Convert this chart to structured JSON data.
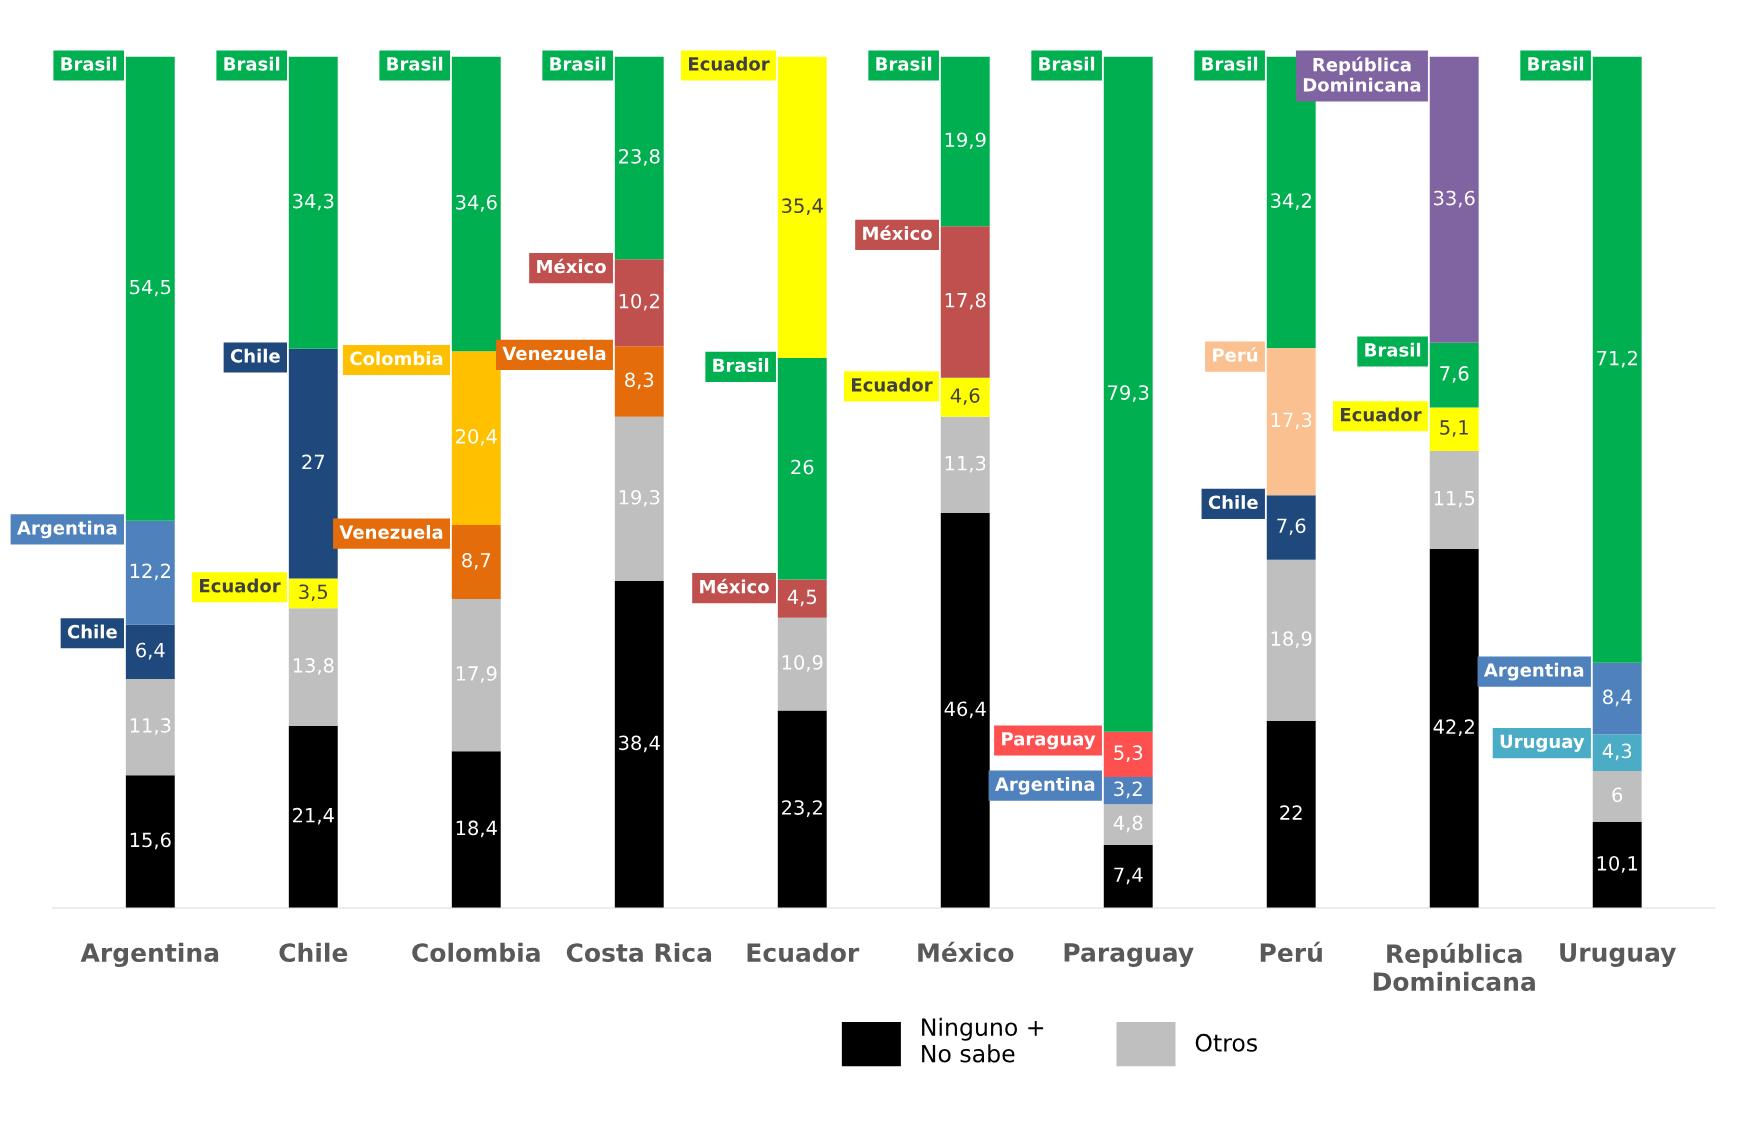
{
  "chart_data": {
    "type": "bar",
    "stacked": true,
    "categories": [
      "Argentina",
      "Chile",
      "Colombia",
      "Costa Rica",
      "Ecuador",
      "México",
      "Paraguay",
      "Perú",
      "República\nDominicana",
      "Uruguay"
    ],
    "series": [
      {
        "name": "Ninguno +\nNo sabe",
        "color": "#000000",
        "values": [
          15.6,
          21.4,
          18.4,
          38.4,
          23.2,
          46.4,
          7.4,
          22,
          42.2,
          10.1
        ],
        "value_labels": [
          "15,6",
          "21,4",
          "18,4",
          "38,4",
          "23,2",
          "46,4",
          "7,4",
          "22",
          "42,2",
          "10,1"
        ]
      },
      {
        "name": "Otros",
        "color": "#bfbfbf",
        "values": [
          11.3,
          13.8,
          17.9,
          19.3,
          10.9,
          11.3,
          4.8,
          18.9,
          11.5,
          6
        ],
        "value_labels": [
          "11,3",
          "13,8",
          "17,9",
          "19,3",
          "10,9",
          "11,3",
          "4,8",
          "18,9",
          "11,5",
          "6"
        ]
      },
      {
        "colors": [
          "#1f497d",
          "#ffff00",
          "#e46c0a",
          "#e46c0a",
          "#c0504d",
          "#ffff00",
          "#4f81bd",
          "#1f497d",
          "#ffff00",
          "#4bacc6"
        ],
        "values": [
          6.4,
          3.5,
          8.7,
          8.3,
          4.5,
          4.6,
          3.2,
          7.6,
          5.1,
          4.3
        ],
        "value_labels": [
          "6,4",
          "3,5",
          "8,7",
          "8,3",
          "4,5",
          "4,6",
          "3,2",
          "7,6",
          "5,1",
          "4,3"
        ]
      },
      {
        "colors": [
          "#4f81bd",
          "#1f497d",
          "#ffc000",
          "#c0504d",
          "#00b050",
          "#c0504d",
          "#ff5050",
          "#fac090",
          "#00b050",
          "#4f81bd"
        ],
        "values": [
          12.2,
          27,
          20.4,
          10.2,
          26,
          17.8,
          5.3,
          17.3,
          7.6,
          8.4
        ],
        "value_labels": [
          "12,2",
          "27",
          "20,4",
          "10,2",
          "26",
          "17,8",
          "5,3",
          "17,3",
          "7,6",
          "8,4"
        ]
      },
      {
        "colors": [
          "#00b050",
          "#00b050",
          "#00b050",
          "#00b050",
          "#ffff00",
          "#00b050",
          "#00b050",
          "#00b050",
          "#8064a2",
          "#00b050"
        ],
        "values": [
          54.5,
          34.3,
          34.6,
          23.8,
          35.4,
          19.9,
          79.3,
          34.2,
          33.6,
          71.2
        ],
        "value_labels": [
          "54,5",
          "34,3",
          "34,6",
          "23,8",
          "35,4",
          "19,9",
          "79,3",
          "34,2",
          "33,6",
          "71,2"
        ]
      }
    ],
    "annotations": [
      {
        "text": "Brasil",
        "x": "Argentina",
        "y": 100
      },
      {
        "text": "Argentina",
        "x": "Argentina",
        "y": 45.5
      },
      {
        "text": "Chile",
        "x": "Argentina",
        "y": 33.3
      },
      {
        "text": "Brasil",
        "x": "Chile",
        "y": 100
      },
      {
        "text": "Chile",
        "x": "Chile",
        "y": 65.7
      },
      {
        "text": "Ecuador",
        "x": "Chile",
        "y": 38.7
      },
      {
        "text": "Brasil",
        "x": "Colombia",
        "y": 100
      },
      {
        "text": "Colombia",
        "x": "Colombia",
        "y": 65.4
      },
      {
        "text": "Venezuela",
        "x": "Colombia",
        "y": 45
      },
      {
        "text": "Brasil",
        "x": "Costa Rica",
        "y": 100
      },
      {
        "text": "México",
        "x": "Costa Rica",
        "y": 76.2
      },
      {
        "text": "Venezuela",
        "x": "Costa Rica",
        "y": 66
      },
      {
        "text": "Ecuador",
        "x": "Ecuador",
        "y": 100
      },
      {
        "text": "Brasil",
        "x": "Ecuador",
        "y": 64.6
      },
      {
        "text": "México",
        "x": "Ecuador",
        "y": 38.6
      },
      {
        "text": "Brasil",
        "x": "México",
        "y": 100
      },
      {
        "text": "México",
        "x": "México",
        "y": 80.1
      },
      {
        "text": "Ecuador",
        "x": "México",
        "y": 62.3
      },
      {
        "text": "Brasil",
        "x": "Paraguay",
        "y": 100
      },
      {
        "text": "Paraguay",
        "x": "Paraguay",
        "y": 20.7
      },
      {
        "text": "Argentina",
        "x": "Paraguay",
        "y": 15.4
      },
      {
        "text": "Brasil",
        "x": "Perú",
        "y": 100
      },
      {
        "text": "Perú",
        "x": "Perú",
        "y": 65.8
      },
      {
        "text": "Chile",
        "x": "Perú",
        "y": 48.5
      },
      {
        "text": "República\nDominicana",
        "x": "República\nDominicana",
        "y": 100
      },
      {
        "text": "Brasil",
        "x": "República\nDominicana",
        "y": 66.4
      },
      {
        "text": "Ecuador",
        "x": "República\nDominicana",
        "y": 58.8
      },
      {
        "text": "Brasil",
        "x": "Uruguay",
        "y": 100
      },
      {
        "text": "Argentina",
        "x": "Uruguay",
        "y": 28.8
      },
      {
        "text": "Uruguay",
        "x": "Uruguay",
        "y": 20.4
      }
    ],
    "legend": "bottom"
  }
}
